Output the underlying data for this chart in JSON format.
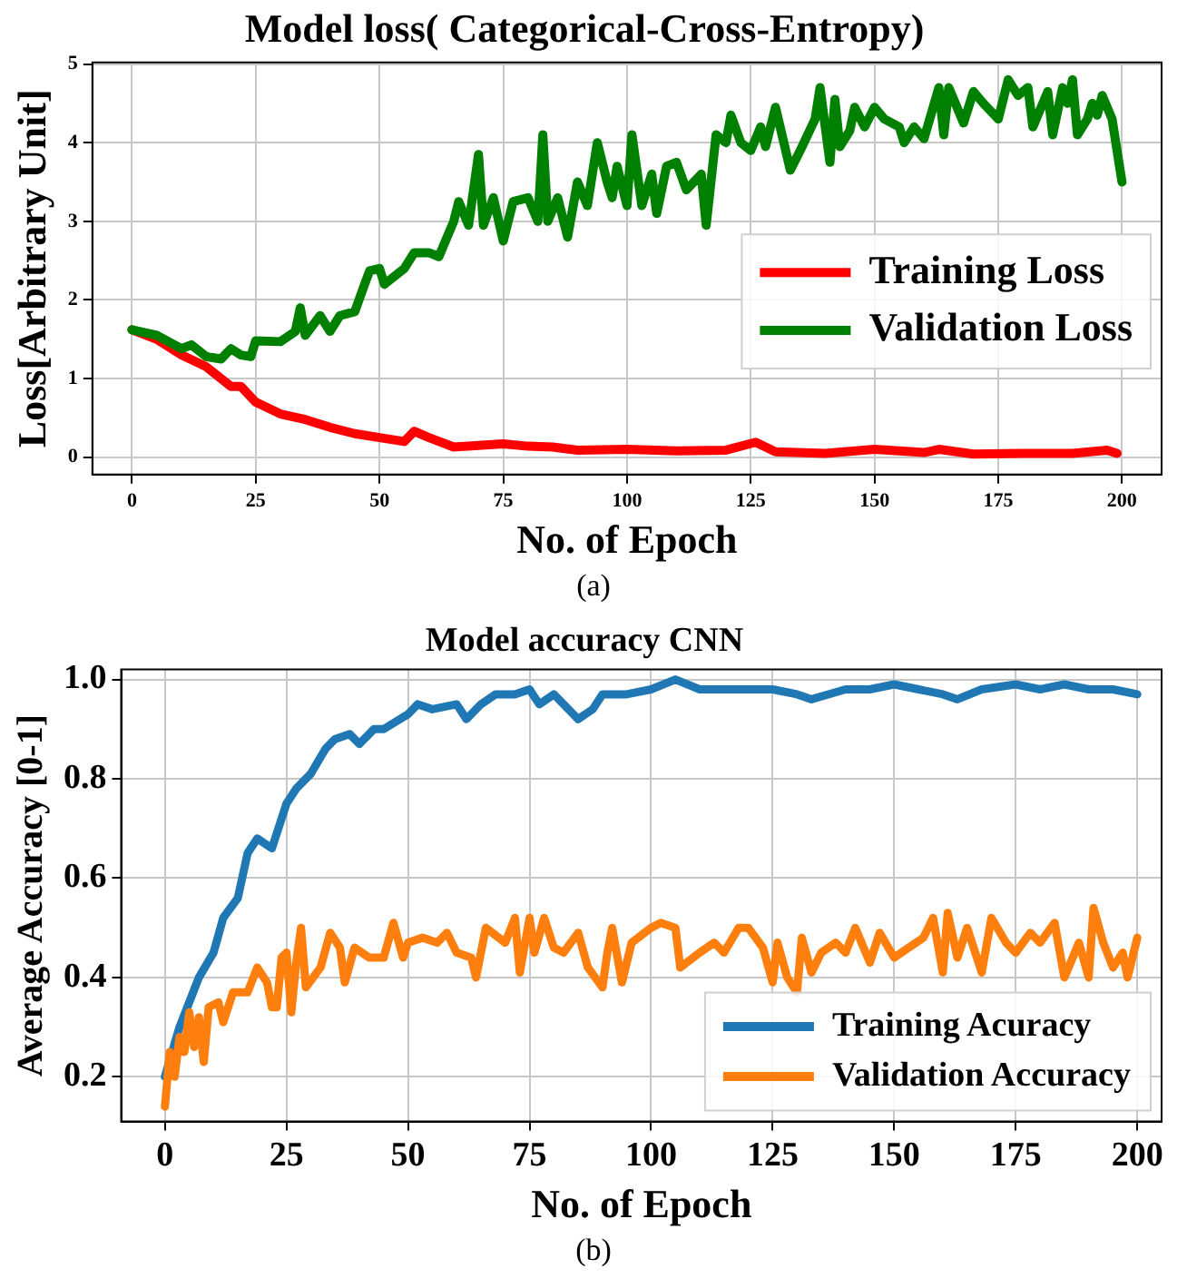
{
  "chart_data": [
    {
      "type": "line",
      "title": "Model loss( Categorical-Cross-Entropy)",
      "xlabel": "No. of Epoch",
      "ylabel": "Loss[Arbitrary Unit]",
      "annotations": [
        "(a)"
      ],
      "xlim": [
        -8,
        208
      ],
      "ylim": [
        -0.22,
        5.02
      ],
      "xticks": [
        0,
        25,
        50,
        75,
        100,
        125,
        150,
        175,
        200
      ],
      "yticks": [
        0,
        1,
        2,
        3,
        4,
        5
      ],
      "grid": true,
      "legend": "right",
      "marker": "none",
      "line_style": "solid",
      "series": [
        {
          "name": "Training Loss",
          "color": "#ff0000",
          "x": [
            0,
            5,
            10,
            15,
            20,
            22,
            25,
            30,
            35,
            40,
            45,
            50,
            55,
            57,
            60,
            65,
            70,
            75,
            80,
            85,
            90,
            100,
            110,
            120,
            126,
            130,
            140,
            150,
            160,
            163,
            170,
            180,
            190,
            197,
            199
          ],
          "values": [
            1.62,
            1.5,
            1.3,
            1.15,
            0.9,
            0.9,
            0.7,
            0.55,
            0.48,
            0.38,
            0.3,
            0.25,
            0.2,
            0.33,
            0.25,
            0.13,
            0.15,
            0.17,
            0.14,
            0.13,
            0.09,
            0.1,
            0.08,
            0.09,
            0.19,
            0.07,
            0.05,
            0.1,
            0.06,
            0.1,
            0.04,
            0.05,
            0.05,
            0.09,
            0.05
          ]
        },
        {
          "name": "Validation Loss",
          "color": "#008000",
          "x": [
            0,
            5,
            10,
            12,
            15,
            18,
            20,
            22,
            24,
            25,
            30,
            33,
            34,
            35,
            38,
            40,
            42,
            45,
            47,
            48,
            50,
            51,
            55,
            57,
            60,
            62,
            65,
            66,
            68,
            70,
            71,
            73,
            75,
            77,
            80,
            82,
            83,
            84,
            86,
            88,
            90,
            92,
            94,
            96,
            97,
            98,
            100,
            101,
            103,
            105,
            106,
            108,
            110,
            112,
            115,
            116,
            118,
            120,
            121,
            123,
            125,
            127,
            128,
            130,
            133,
            135,
            138,
            139,
            141,
            142,
            143,
            145,
            146,
            148,
            150,
            152,
            155,
            156,
            158,
            160,
            163,
            164,
            165,
            168,
            170,
            172,
            175,
            177,
            179,
            181,
            182,
            185,
            186,
            188,
            189,
            190,
            191,
            193,
            194,
            195,
            196,
            198,
            200
          ],
          "values": [
            1.62,
            1.55,
            1.38,
            1.43,
            1.28,
            1.25,
            1.38,
            1.3,
            1.28,
            1.48,
            1.47,
            1.6,
            1.9,
            1.55,
            1.8,
            1.6,
            1.8,
            1.85,
            2.2,
            2.37,
            2.4,
            2.2,
            2.4,
            2.6,
            2.6,
            2.55,
            3.0,
            3.25,
            2.95,
            3.85,
            2.95,
            3.3,
            2.75,
            3.25,
            3.3,
            3.0,
            4.1,
            3.0,
            3.3,
            2.8,
            3.5,
            3.2,
            4.0,
            3.5,
            3.3,
            3.7,
            3.2,
            4.1,
            3.2,
            3.6,
            3.1,
            3.7,
            3.75,
            3.4,
            3.6,
            2.95,
            4.1,
            4.0,
            4.35,
            4.0,
            3.9,
            4.2,
            3.95,
            4.45,
            3.65,
            3.9,
            4.3,
            4.7,
            3.75,
            4.55,
            3.95,
            4.15,
            4.45,
            4.2,
            4.45,
            4.3,
            4.2,
            4.0,
            4.2,
            4.05,
            4.7,
            4.1,
            4.7,
            4.25,
            4.65,
            4.5,
            4.3,
            4.8,
            4.6,
            4.7,
            4.2,
            4.65,
            4.1,
            4.7,
            4.5,
            4.8,
            4.1,
            4.3,
            4.5,
            4.35,
            4.6,
            4.3,
            3.5
          ]
        }
      ]
    },
    {
      "type": "line",
      "title": "Model accuracy CNN",
      "xlabel": "No. of Epoch",
      "ylabel": "Average Accuracy [0-1]",
      "annotations": [
        "(b)"
      ],
      "xlim": [
        -9,
        205
      ],
      "ylim": [
        0.11,
        1.02
      ],
      "xticks": [
        0,
        25,
        50,
        75,
        100,
        125,
        150,
        175,
        200
      ],
      "yticks": [
        0.2,
        0.4,
        0.6,
        0.8,
        {
          "value": 1,
          "label": "1.0"
        }
      ],
      "grid": true,
      "legend": "bottom right",
      "marker": "none",
      "line_style": "solid",
      "series": [
        {
          "name": "Training Acuracy",
          "color": "#1f77b4",
          "x": [
            0,
            3,
            5,
            7,
            10,
            12,
            15,
            17,
            19,
            22,
            24,
            25,
            27,
            30,
            33,
            35,
            38,
            40,
            43,
            45,
            50,
            52,
            55,
            60,
            62,
            65,
            68,
            72,
            75,
            77,
            80,
            83,
            85,
            88,
            90,
            95,
            100,
            105,
            110,
            115,
            120,
            125,
            130,
            133,
            140,
            145,
            150,
            155,
            160,
            163,
            168,
            175,
            180,
            185,
            190,
            195,
            200
          ],
          "values": [
            0.2,
            0.3,
            0.35,
            0.4,
            0.45,
            0.52,
            0.56,
            0.65,
            0.68,
            0.66,
            0.72,
            0.75,
            0.78,
            0.81,
            0.86,
            0.88,
            0.89,
            0.87,
            0.9,
            0.9,
            0.93,
            0.95,
            0.94,
            0.95,
            0.92,
            0.95,
            0.97,
            0.97,
            0.98,
            0.95,
            0.97,
            0.94,
            0.92,
            0.94,
            0.97,
            0.97,
            0.98,
            1.0,
            0.98,
            0.98,
            0.98,
            0.98,
            0.97,
            0.96,
            0.98,
            0.98,
            0.99,
            0.98,
            0.97,
            0.96,
            0.98,
            0.99,
            0.98,
            0.99,
            0.98,
            0.98,
            0.97
          ]
        },
        {
          "name": "Validation Accuracy",
          "color": "#ff7f0e",
          "x": [
            0,
            1,
            2,
            3,
            4,
            5,
            6,
            7,
            8,
            9,
            11,
            12,
            14,
            17,
            19,
            21,
            22,
            23,
            24,
            25,
            26,
            27,
            28,
            29,
            32,
            34,
            36,
            37,
            39,
            42,
            45,
            47,
            49,
            50,
            53,
            56,
            58,
            60,
            63,
            64,
            66,
            70,
            72,
            73,
            75,
            76,
            78,
            80,
            82,
            85,
            87,
            90,
            91,
            92,
            94,
            96,
            100,
            102,
            105,
            106,
            110,
            113,
            115,
            118,
            120,
            123,
            125,
            126,
            128,
            130,
            131,
            133,
            135,
            138,
            140,
            142,
            145,
            147,
            150,
            153,
            156,
            158,
            160,
            161,
            163,
            165,
            168,
            170,
            173,
            175,
            178,
            180,
            183,
            185,
            188,
            190,
            191,
            193,
            195,
            197,
            198,
            200
          ],
          "values": [
            0.14,
            0.25,
            0.2,
            0.28,
            0.25,
            0.33,
            0.26,
            0.32,
            0.23,
            0.34,
            0.35,
            0.31,
            0.37,
            0.37,
            0.42,
            0.39,
            0.34,
            0.34,
            0.44,
            0.45,
            0.33,
            0.43,
            0.5,
            0.38,
            0.42,
            0.49,
            0.46,
            0.39,
            0.46,
            0.44,
            0.44,
            0.51,
            0.44,
            0.47,
            0.48,
            0.47,
            0.49,
            0.45,
            0.44,
            0.4,
            0.5,
            0.47,
            0.52,
            0.41,
            0.52,
            0.45,
            0.52,
            0.46,
            0.45,
            0.49,
            0.42,
            0.38,
            0.45,
            0.5,
            0.39,
            0.47,
            0.5,
            0.51,
            0.5,
            0.42,
            0.45,
            0.47,
            0.45,
            0.5,
            0.5,
            0.46,
            0.39,
            0.47,
            0.4,
            0.37,
            0.48,
            0.41,
            0.45,
            0.47,
            0.45,
            0.5,
            0.43,
            0.49,
            0.44,
            0.46,
            0.48,
            0.52,
            0.41,
            0.53,
            0.44,
            0.5,
            0.41,
            0.52,
            0.47,
            0.45,
            0.49,
            0.47,
            0.51,
            0.4,
            0.47,
            0.4,
            0.54,
            0.47,
            0.42,
            0.45,
            0.4,
            0.48
          ]
        }
      ]
    }
  ]
}
